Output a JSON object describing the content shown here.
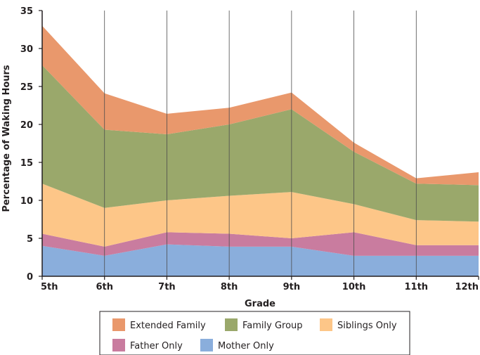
{
  "chart_data": {
    "type": "area",
    "stacked": true,
    "categories": [
      "5th",
      "6th",
      "7th",
      "8th",
      "9th",
      "10th",
      "11th",
      "12th"
    ],
    "xlabel": "Grade",
    "ylabel": "Percentage of Waking Hours",
    "ylim": [
      0,
      35
    ],
    "yticks": [
      0,
      5,
      10,
      15,
      20,
      25,
      30,
      35
    ],
    "grid": "vertical",
    "legend_position": "bottom",
    "series": [
      {
        "name": "Mother Only",
        "color": "#8aaedc",
        "values": [
          4.0,
          2.7,
          4.2,
          3.9,
          3.9,
          2.7,
          2.7,
          2.7
        ]
      },
      {
        "name": "Father Only",
        "color": "#c97c9f",
        "values": [
          1.6,
          1.2,
          1.6,
          1.7,
          1.1,
          3.1,
          1.4,
          1.4
        ]
      },
      {
        "name": "Siblings Only",
        "color": "#fdc688",
        "values": [
          6.6,
          5.1,
          4.2,
          5.0,
          6.1,
          3.7,
          3.3,
          3.1
        ]
      },
      {
        "name": "Family Group",
        "color": "#9aa86b",
        "values": [
          15.6,
          10.3,
          8.7,
          9.4,
          10.9,
          6.9,
          4.8,
          4.8
        ]
      },
      {
        "name": "Extended Family",
        "color": "#e9986c",
        "values": [
          5.2,
          4.8,
          2.7,
          2.2,
          2.2,
          1.2,
          0.7,
          1.7
        ]
      }
    ],
    "legend_order": [
      "Extended Family",
      "Family Group",
      "Siblings Only",
      "Father Only",
      "Mother Only"
    ]
  }
}
